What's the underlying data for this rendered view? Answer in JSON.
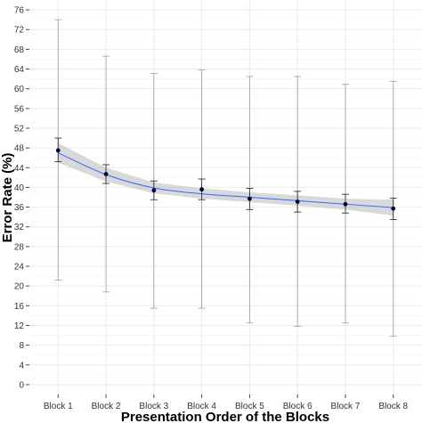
{
  "chart_data": {
    "type": "line",
    "title": "",
    "xlabel": "Presentation Order of the Blocks",
    "ylabel": "Error Rate (%)",
    "categories": [
      "Block 1",
      "Block 2",
      "Block 3",
      "Block 4",
      "Block 5",
      "Block 6",
      "Block 7",
      "Block 8"
    ],
    "yticks": [
      "0",
      "4",
      "8",
      "12",
      "16",
      "20",
      "24",
      "28",
      "32",
      "36",
      "40",
      "44",
      "48",
      "52",
      "56",
      "60",
      "64",
      "68",
      "72",
      "76"
    ],
    "ylim": [
      -2,
      78
    ],
    "grid": true,
    "series": [
      {
        "values": [
          47.5,
          42.7,
          39.4,
          39.6,
          37.7,
          37.1,
          36.6,
          35.7
        ],
        "sd_low": [
          21.2,
          18.8,
          15.5,
          15.5,
          12.5,
          11.8,
          12.5,
          9.8
        ],
        "sd_high": [
          74.0,
          66.6,
          63.1,
          63.8,
          62.5,
          62.5,
          60.9,
          61.5
        ],
        "se_low": [
          45.2,
          40.8,
          37.5,
          37.5,
          35.5,
          35.0,
          34.8,
          33.5
        ],
        "se_high": [
          50.0,
          44.6,
          41.3,
          41.7,
          39.8,
          39.2,
          38.6,
          37.8
        ],
        "marker_color": "#000033",
        "error_color": "#9e9e9e"
      }
    ],
    "smooth_fit": {
      "values": [
        47.0,
        42.6,
        39.9,
        38.7,
        38.0,
        37.3,
        36.6,
        35.9
      ],
      "ci_low": [
        45.0,
        41.2,
        38.8,
        37.7,
        37.0,
        36.3,
        35.5,
        34.3
      ],
      "ci_high": [
        49.0,
        44.0,
        41.0,
        39.8,
        39.0,
        38.4,
        37.7,
        37.5
      ],
      "line_color": "#3366ff",
      "band_color": "#b3b3b3"
    }
  }
}
